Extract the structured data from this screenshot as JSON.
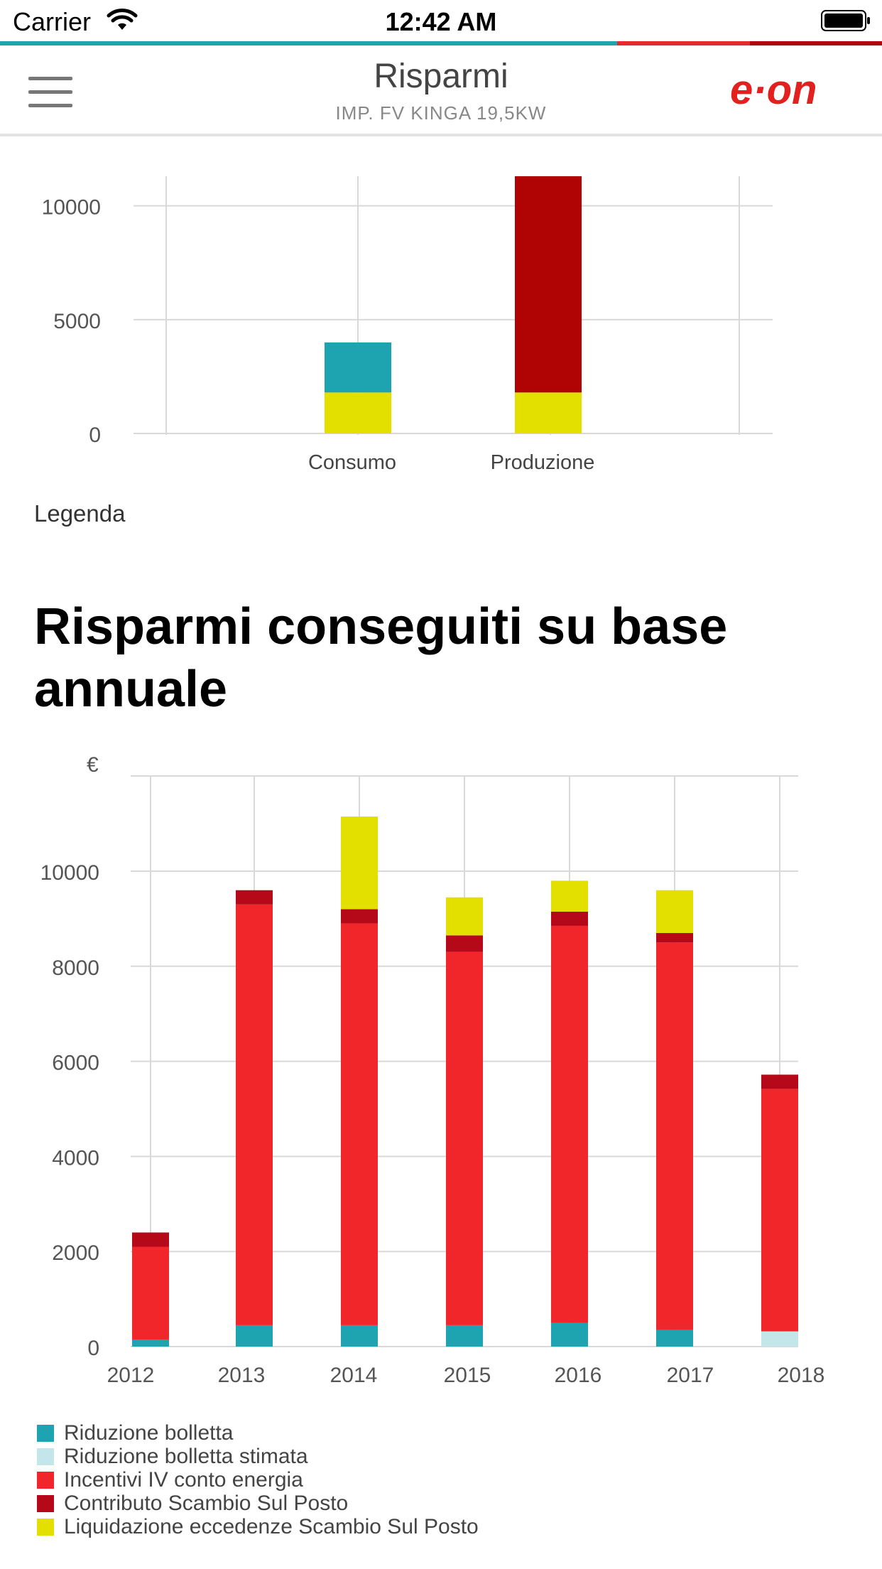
{
  "status": {
    "carrier": "Carrier",
    "time": "12:42 AM"
  },
  "header": {
    "title": "Risparmi",
    "subtitle": "IMP. FV KINGA 19,5KW",
    "logo_text": "e·on"
  },
  "colors": {
    "teal": "#1ea3b0",
    "light_teal": "#c3e6ea",
    "red": "#f0262b",
    "dark_red": "#b5091a",
    "yellow": "#e3e000",
    "prod_red": "#b00404"
  },
  "chart1": {
    "type": "bar",
    "categories": [
      "Consumo",
      "Produzione"
    ],
    "yticks": [
      0,
      5000,
      10000
    ],
    "ylim": [
      0,
      11300
    ],
    "series": [
      {
        "color": "#e3e000",
        "values": [
          1800,
          1800
        ]
      },
      {
        "color": "#1ea3b0",
        "values": [
          2200,
          0
        ]
      },
      {
        "color": "#b00404",
        "values": [
          0,
          9500
        ]
      }
    ]
  },
  "legend_link": "Legenda",
  "section_title": "Risparmi conseguiti su base annuale",
  "chart_data": {
    "type": "bar",
    "stacked": true,
    "ylabel": "€",
    "categories": [
      "2012",
      "2013",
      "2014",
      "2015",
      "2016",
      "2017",
      "2018"
    ],
    "yticks": [
      0,
      2000,
      4000,
      6000,
      8000,
      10000
    ],
    "ylim": [
      0,
      11500
    ],
    "series": [
      {
        "name": "Riduzione bolletta",
        "color": "#1ea3b0",
        "values": [
          150,
          450,
          450,
          450,
          500,
          350,
          0
        ]
      },
      {
        "name": "Riduzione bolletta stimata",
        "color": "#c3e6ea",
        "values": [
          0,
          0,
          0,
          0,
          0,
          0,
          320
        ]
      },
      {
        "name": "Incentivi IV conto energia",
        "color": "#f0262b",
        "values": [
          1950,
          8850,
          8450,
          7850,
          8350,
          8150,
          5100
        ]
      },
      {
        "name": "Contributo Scambio Sul Posto",
        "color": "#b5091a",
        "values": [
          300,
          300,
          300,
          350,
          300,
          200,
          300
        ]
      },
      {
        "name": "Liquidazione eccedenze Scambio Sul Posto",
        "color": "#e3e000",
        "values": [
          0,
          0,
          1950,
          800,
          650,
          900,
          0
        ]
      }
    ]
  }
}
